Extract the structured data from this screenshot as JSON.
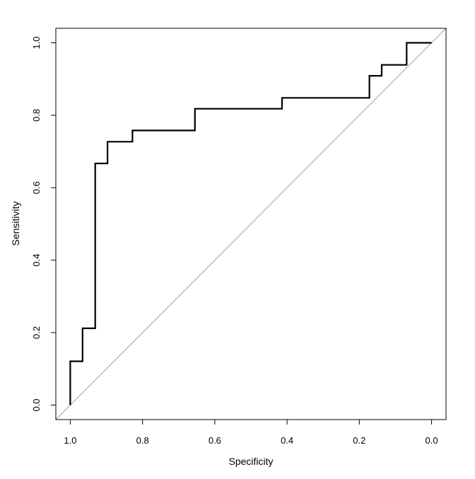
{
  "chart_data": {
    "type": "line",
    "title": "",
    "xlabel": "Specificity",
    "ylabel": "Sensitivity",
    "xlim": [
      1.04,
      -0.04
    ],
    "ylim": [
      -0.04,
      1.04
    ],
    "x_reversed": true,
    "x_ticks": [
      1.0,
      0.8,
      0.6,
      0.4,
      0.2,
      0.0
    ],
    "x_tick_labels": [
      "1.0",
      "0.8",
      "0.6",
      "0.4",
      "0.2",
      "0.0"
    ],
    "y_ticks": [
      0.0,
      0.2,
      0.4,
      0.6,
      0.8,
      1.0
    ],
    "y_tick_labels": [
      "0.0",
      "0.2",
      "0.4",
      "0.6",
      "0.8",
      "1.0"
    ],
    "grid": false,
    "legend": "none",
    "series": [
      {
        "style": "step",
        "color": "#000000",
        "x": [
          1.0,
          1.0,
          0.966,
          0.966,
          0.931,
          0.931,
          0.897,
          0.897,
          0.828,
          0.828,
          0.655,
          0.655,
          0.414,
          0.414,
          0.172,
          0.172,
          0.138,
          0.138,
          0.069,
          0.069,
          0.0
        ],
        "y": [
          0.0,
          0.121,
          0.121,
          0.212,
          0.212,
          0.667,
          0.667,
          0.727,
          0.727,
          0.758,
          0.758,
          0.818,
          0.818,
          0.848,
          0.848,
          0.909,
          0.909,
          0.939,
          0.939,
          1.0,
          1.0
        ]
      }
    ],
    "reference_line": {
      "from": [
        1.04,
        -0.04
      ],
      "to": [
        -0.04,
        1.04
      ],
      "color": "#a0a0a0"
    }
  }
}
